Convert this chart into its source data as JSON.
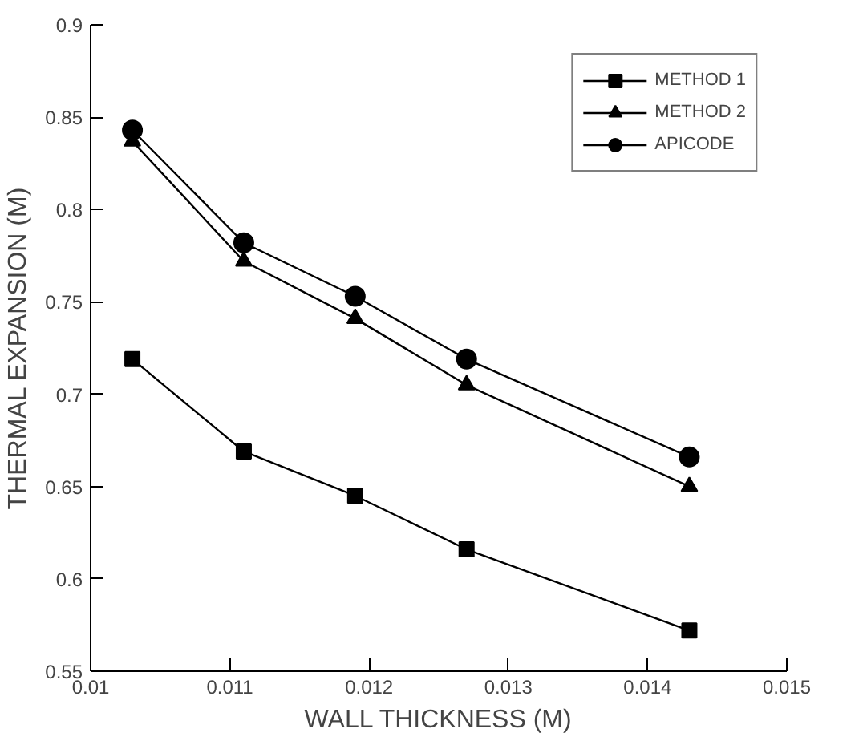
{
  "chart_data": {
    "type": "line",
    "xlabel": "WALL THICKNESS (M)",
    "ylabel": "THERMAL EXPANSION (M)",
    "x": [
      0.0103,
      0.0111,
      0.0119,
      0.0127,
      0.0143
    ],
    "series": [
      {
        "name": "METHOD 1",
        "color": "#000000",
        "marker": "square",
        "values": [
          0.719,
          0.669,
          0.645,
          0.616,
          0.572
        ]
      },
      {
        "name": "METHOD 2",
        "color": "#000000",
        "marker": "triangle",
        "values": [
          0.837,
          0.772,
          0.741,
          0.705,
          0.65
        ]
      },
      {
        "name": "APICODE",
        "color": "#000000",
        "marker": "circle",
        "values": [
          0.843,
          0.782,
          0.753,
          0.719,
          0.666
        ]
      }
    ],
    "xlim": [
      0.01,
      0.015
    ],
    "xticks": [
      0.01,
      0.011,
      0.012,
      0.013,
      0.014,
      0.015
    ],
    "ylim": [
      0.55,
      0.9
    ],
    "yticks": [
      0.55,
      0.6,
      0.65,
      0.7,
      0.75,
      0.8,
      0.85,
      0.9
    ],
    "grid": false,
    "legend": "top right",
    "line_style": "solid"
  }
}
